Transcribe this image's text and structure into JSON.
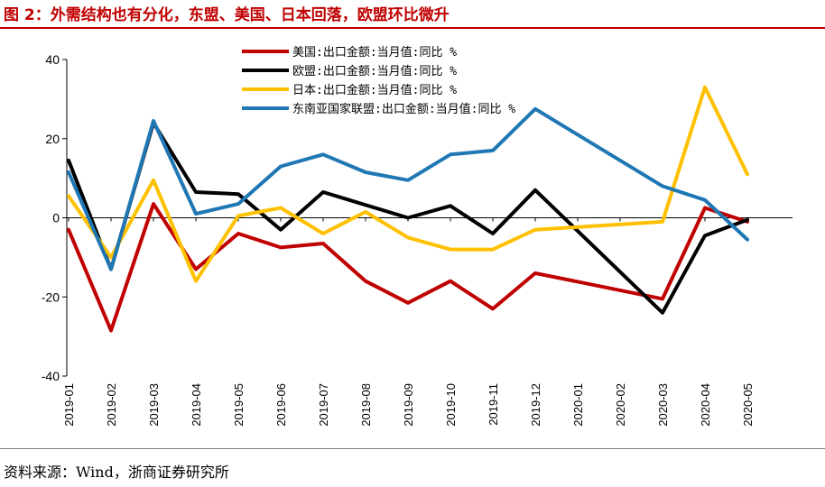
{
  "title": "图 2：外需结构也有分化，东盟、美国、日本回落，欧盟环比微升",
  "source": "资料来源：Wind，浙商证券研究所",
  "chart_data": {
    "type": "line",
    "x": [
      "2019-01",
      "2019-02",
      "2019-03",
      "2019-04",
      "2019-05",
      "2019-06",
      "2019-07",
      "2019-08",
      "2019-09",
      "2019-10",
      "2019-11",
      "2019-12",
      "2020-01",
      "2020-02",
      "2020-03",
      "2020-04",
      "2020-05"
    ],
    "ylim": [
      -40,
      40
    ],
    "yticks": [
      -40,
      -20,
      0,
      20,
      40
    ],
    "series": [
      {
        "name": "美国:出口金额:当月值:同比 %",
        "color": "#c00000",
        "values": [
          -3,
          -28.5,
          3.5,
          -13,
          -4,
          -7.5,
          -6.5,
          -16,
          -21.5,
          -16,
          -23,
          -14,
          null,
          null,
          -20.5,
          2.5,
          -1
        ]
      },
      {
        "name": "欧盟:出口金额:当月值:同比 %",
        "color": "#000000",
        "values": [
          14.5,
          -13,
          24,
          6.5,
          6,
          -3,
          6.5,
          null,
          0,
          3,
          -4,
          7,
          null,
          null,
          -24,
          -4.5,
          -0.5
        ]
      },
      {
        "name": "日本:出口金额:当月值:同比 %",
        "color": "#ffc000",
        "values": [
          5.5,
          -10,
          9.5,
          -16,
          0.5,
          2.5,
          -4,
          1.5,
          -5,
          -8,
          -8,
          -3,
          null,
          null,
          -1,
          33,
          11
        ]
      },
      {
        "name": "东南亚国家联盟:出口金额:当月值:同比 %",
        "color": "#1f77b4",
        "values": [
          11.5,
          -13,
          24.5,
          1,
          3.5,
          13,
          16,
          11.5,
          9.5,
          16,
          17,
          27.5,
          null,
          null,
          8,
          4.5,
          -5.5
        ]
      }
    ]
  }
}
